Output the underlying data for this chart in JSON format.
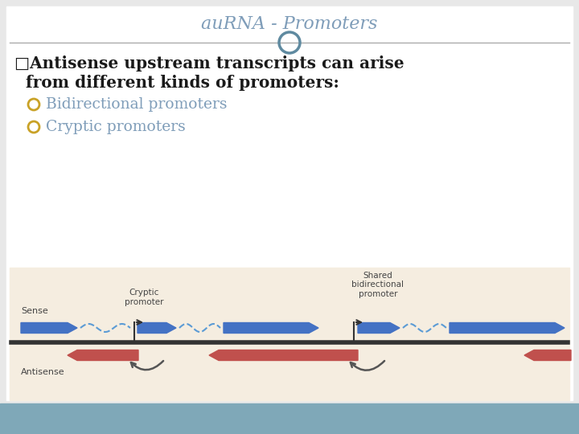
{
  "title": "auRNA - Promoters",
  "title_color": "#7f9db9",
  "bg_color": "#e8e8e8",
  "slide_bg": "#7fa8b8",
  "white_bg": "#ffffff",
  "main_text_line1": "□Antisense upstream transcripts can arise",
  "main_text_line2": "  from different kinds of promoters:",
  "bullet1_text": "Bidirectional promoters",
  "bullet2_text": "Cryptic promoters",
  "bullet_color": "#7f9db9",
  "bullet_circle_color": "#c9a227",
  "text_color": "#1a1a1a",
  "diagram_bg": "#f5ede0",
  "diagram_border": "#bbbbbb",
  "dna_line_color": "#333333",
  "sense_color": "#4472c4",
  "antisense_color": "#c0504d",
  "dashed_color": "#5b9bd5",
  "label_color": "#444444",
  "arrow_color": "#555555",
  "sense_label": "Sense",
  "antisense_label": "Antisense",
  "cryptic_label": "Cryptic\npromoter",
  "shared_label": "Shared\nbidirectional\npromoter",
  "title_box_color": "#cccccc",
  "separator_color": "#aaaaaa"
}
